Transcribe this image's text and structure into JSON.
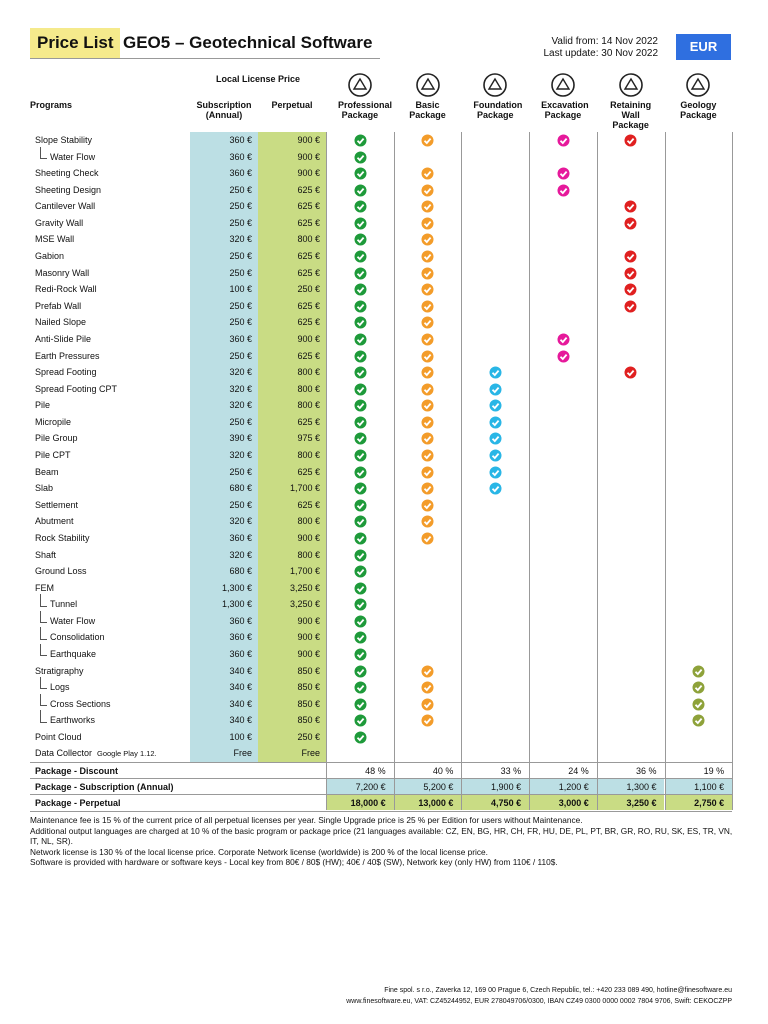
{
  "header": {
    "title_highlight": "Price List",
    "title": "GEO5 – Geotechnical Software",
    "valid_from": "Valid from: 14 Nov 2022",
    "last_update": "Last update: 30 Nov 2022",
    "currency": "EUR"
  },
  "table": {
    "group_header": "Local License Price",
    "columns": [
      "Programs",
      "Subscription (Annual)",
      "Perpetual",
      "Professional Package",
      "Basic Package",
      "Foundation Package",
      "Excavation Package",
      "Retaining Wall Package",
      "Geology Package"
    ],
    "rows": [
      {
        "name": "Slope Stability",
        "subscription": "360 €",
        "perpetual": "900 €",
        "checks": [
          true,
          true,
          false,
          true,
          true,
          false
        ]
      },
      {
        "name": "Water Flow",
        "sub": true,
        "subscription": "360 €",
        "perpetual": "900 €",
        "checks": [
          true,
          false,
          false,
          false,
          false,
          false
        ]
      },
      {
        "name": "Sheeting Check",
        "subscription": "360 €",
        "perpetual": "900 €",
        "checks": [
          true,
          true,
          false,
          true,
          false,
          false
        ]
      },
      {
        "name": "Sheeting Design",
        "subscription": "250 €",
        "perpetual": "625 €",
        "checks": [
          true,
          true,
          false,
          true,
          false,
          false
        ]
      },
      {
        "name": "Cantilever Wall",
        "subscription": "250 €",
        "perpetual": "625 €",
        "checks": [
          true,
          true,
          false,
          false,
          true,
          false
        ]
      },
      {
        "name": "Gravity Wall",
        "subscription": "250 €",
        "perpetual": "625 €",
        "checks": [
          true,
          true,
          false,
          false,
          true,
          false
        ]
      },
      {
        "name": "MSE Wall",
        "subscription": "320 €",
        "perpetual": "800 €",
        "checks": [
          true,
          true,
          false,
          false,
          false,
          false
        ]
      },
      {
        "name": "Gabion",
        "subscription": "250 €",
        "perpetual": "625 €",
        "checks": [
          true,
          true,
          false,
          false,
          true,
          false
        ]
      },
      {
        "name": "Masonry Wall",
        "subscription": "250 €",
        "perpetual": "625 €",
        "checks": [
          true,
          true,
          false,
          false,
          true,
          false
        ]
      },
      {
        "name": "Redi-Rock Wall",
        "subscription": "100 €",
        "perpetual": "250 €",
        "checks": [
          true,
          true,
          false,
          false,
          true,
          false
        ]
      },
      {
        "name": "Prefab Wall",
        "subscription": "250 €",
        "perpetual": "625 €",
        "checks": [
          true,
          true,
          false,
          false,
          true,
          false
        ]
      },
      {
        "name": "Nailed Slope",
        "subscription": "250 €",
        "perpetual": "625 €",
        "checks": [
          true,
          true,
          false,
          false,
          false,
          false
        ]
      },
      {
        "name": "Anti-Slide Pile",
        "subscription": "360 €",
        "perpetual": "900 €",
        "checks": [
          true,
          true,
          false,
          true,
          false,
          false
        ]
      },
      {
        "name": "Earth Pressures",
        "subscription": "250 €",
        "perpetual": "625 €",
        "checks": [
          true,
          true,
          false,
          true,
          false,
          false
        ]
      },
      {
        "name": "Spread Footing",
        "subscription": "320 €",
        "perpetual": "800 €",
        "checks": [
          true,
          true,
          true,
          false,
          true,
          false
        ]
      },
      {
        "name": "Spread Footing CPT",
        "subscription": "320 €",
        "perpetual": "800 €",
        "checks": [
          true,
          true,
          true,
          false,
          false,
          false
        ]
      },
      {
        "name": "Pile",
        "subscription": "320 €",
        "perpetual": "800 €",
        "checks": [
          true,
          true,
          true,
          false,
          false,
          false
        ]
      },
      {
        "name": "Micropile",
        "subscription": "250 €",
        "perpetual": "625 €",
        "checks": [
          true,
          true,
          true,
          false,
          false,
          false
        ]
      },
      {
        "name": "Pile Group",
        "subscription": "390 €",
        "perpetual": "975 €",
        "checks": [
          true,
          true,
          true,
          false,
          false,
          false
        ]
      },
      {
        "name": "Pile CPT",
        "subscription": "320 €",
        "perpetual": "800 €",
        "checks": [
          true,
          true,
          true,
          false,
          false,
          false
        ]
      },
      {
        "name": "Beam",
        "subscription": "250 €",
        "perpetual": "625 €",
        "checks": [
          true,
          true,
          true,
          false,
          false,
          false
        ]
      },
      {
        "name": "Slab",
        "subscription": "680 €",
        "perpetual": "1,700 €",
        "checks": [
          true,
          true,
          true,
          false,
          false,
          false
        ]
      },
      {
        "name": "Settlement",
        "subscription": "250 €",
        "perpetual": "625 €",
        "checks": [
          true,
          true,
          false,
          false,
          false,
          false
        ]
      },
      {
        "name": "Abutment",
        "subscription": "320 €",
        "perpetual": "800 €",
        "checks": [
          true,
          true,
          false,
          false,
          false,
          false
        ]
      },
      {
        "name": "Rock Stability",
        "subscription": "360 €",
        "perpetual": "900 €",
        "checks": [
          true,
          true,
          false,
          false,
          false,
          false
        ]
      },
      {
        "name": "Shaft",
        "subscription": "320 €",
        "perpetual": "800 €",
        "checks": [
          true,
          false,
          false,
          false,
          false,
          false
        ]
      },
      {
        "name": "Ground Loss",
        "subscription": "680 €",
        "perpetual": "1,700 €",
        "checks": [
          true,
          false,
          false,
          false,
          false,
          false
        ]
      },
      {
        "name": "FEM",
        "subscription": "1,300 €",
        "perpetual": "3,250 €",
        "checks": [
          true,
          false,
          false,
          false,
          false,
          false
        ]
      },
      {
        "name": "Tunnel",
        "sub": true,
        "subscription": "1,300 €",
        "perpetual": "3,250 €",
        "checks": [
          true,
          false,
          false,
          false,
          false,
          false
        ]
      },
      {
        "name": "Water Flow",
        "sub": true,
        "subscription": "360 €",
        "perpetual": "900 €",
        "checks": [
          true,
          false,
          false,
          false,
          false,
          false
        ]
      },
      {
        "name": "Consolidation",
        "sub": true,
        "subscription": "360 €",
        "perpetual": "900 €",
        "checks": [
          true,
          false,
          false,
          false,
          false,
          false
        ]
      },
      {
        "name": "Earthquake",
        "sub": true,
        "subscription": "360 €",
        "perpetual": "900 €",
        "checks": [
          true,
          false,
          false,
          false,
          false,
          false
        ]
      },
      {
        "name": "Stratigraphy",
        "subscription": "340 €",
        "perpetual": "850 €",
        "checks": [
          true,
          true,
          false,
          false,
          false,
          true
        ]
      },
      {
        "name": "Logs",
        "sub": true,
        "subscription": "340 €",
        "perpetual": "850 €",
        "checks": [
          true,
          true,
          false,
          false,
          false,
          true
        ]
      },
      {
        "name": "Cross Sections",
        "sub": true,
        "subscription": "340 €",
        "perpetual": "850 €",
        "checks": [
          true,
          true,
          false,
          false,
          false,
          true
        ]
      },
      {
        "name": "Earthworks",
        "sub": true,
        "subscription": "340 €",
        "perpetual": "850 €",
        "checks": [
          true,
          true,
          false,
          false,
          false,
          true
        ]
      },
      {
        "name": "Point Cloud",
        "subscription": "100 €",
        "perpetual": "250 €",
        "checks": [
          true,
          false,
          false,
          false,
          false,
          false
        ]
      },
      {
        "name": "Data Collector",
        "note": "Google Play 1.12.",
        "subscription": "Free",
        "perpetual": "Free",
        "checks": [
          false,
          false,
          false,
          false,
          false,
          false
        ]
      }
    ],
    "summary": [
      {
        "label": "Package - Discount",
        "values": [
          "48 %",
          "40 %",
          "33 %",
          "24 %",
          "36 %",
          "19 %"
        ]
      },
      {
        "label": "Package - Subscription (Annual)",
        "values": [
          "7,200 €",
          "5,200 €",
          "1,900 €",
          "1,200 €",
          "1,300 €",
          "1,100 €"
        ]
      },
      {
        "label": "Package - Perpetual",
        "values": [
          "18,000 €",
          "13,000 €",
          "4,750 €",
          "3,000 €",
          "3,250 €",
          "2,750 €"
        ]
      }
    ]
  },
  "notes": [
    "Maintenance fee is 15 % of the current price of all perpetual licenses per year. Single Upgrade price is 25 % per Edition for users without Maintenance.",
    "Additional output languages are charged at 10 % of the basic program or package price (21 languages available: CZ, EN, BG, HR, CH, FR, HU, DE, PL, PT, BR, GR, RO, RU, SK, ES, TR, VN, IT, NL, SR).",
    "Network license is 130 % of the local license price. Corporate Network license (worldwide) is 200 % of the local license price.",
    "Software is provided with hardware or software keys - Local key from 80€ / 80$ (HW); 40€ / 40$ (SW), Network key (only HW) from 110€ / 110$."
  ],
  "footer": [
    "Fine spol. s r.o., Zaverka 12, 169 00 Prague 6, Czech Republic, tel.: +420 233 089 490, hotline@finesoftware.eu",
    "www.finesoftware.eu, VAT: CZ45244952, EUR 278049706/0300, IBAN CZ49 0300 0000 0002 7804 9706, Swift: CEKOCZPP"
  ]
}
